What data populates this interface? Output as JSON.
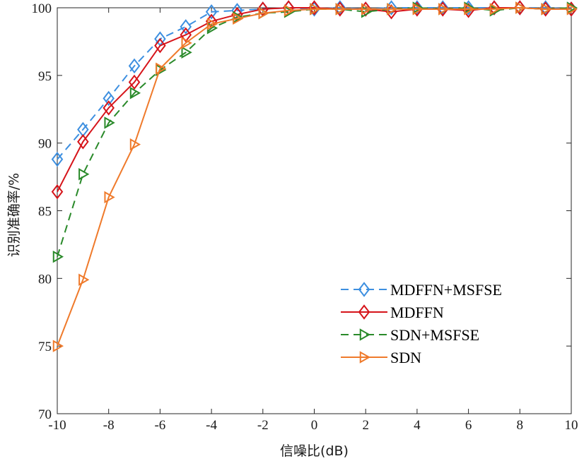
{
  "chart_data": {
    "type": "line",
    "xlabel": "信噪比(dB)",
    "ylabel": "识别准确率/%",
    "xlim": [
      -10,
      10
    ],
    "ylim": [
      70,
      100
    ],
    "xticks": [
      "-10",
      "-8",
      "-6",
      "-4",
      "-2",
      "0",
      "2",
      "4",
      "6",
      "8",
      "10"
    ],
    "yticks": [
      "70",
      "75",
      "80",
      "85",
      "90",
      "95",
      "100"
    ],
    "grid": false,
    "legend_position": "lower-right",
    "x": [
      -10,
      -9,
      -8,
      -7,
      -6,
      -5,
      -4,
      -3,
      -2,
      -1,
      0,
      1,
      2,
      3,
      4,
      5,
      6,
      7,
      8,
      9,
      10
    ],
    "series": [
      {
        "name": "MDFFN+MSFSE",
        "color": "#3d8fe0",
        "line_style": "dashed",
        "marker": "diamond",
        "values": [
          88.8,
          91.0,
          93.3,
          95.7,
          97.7,
          98.6,
          99.7,
          99.8,
          99.9,
          100.0,
          99.9,
          100.0,
          99.9,
          100.0,
          100.0,
          100.0,
          100.0,
          100.0,
          100.0,
          100.0,
          99.9
        ]
      },
      {
        "name": "MDFFN",
        "color": "#d6141a",
        "line_style": "solid",
        "marker": "diamond",
        "values": [
          86.4,
          90.1,
          92.6,
          94.5,
          97.2,
          98.0,
          99.0,
          99.5,
          99.9,
          100.0,
          100.0,
          99.9,
          99.9,
          99.7,
          99.9,
          99.9,
          99.8,
          100.0,
          100.0,
          99.9,
          99.9
        ]
      },
      {
        "name": "SDN+MSFSE",
        "color": "#2a8a2a",
        "line_style": "dashed",
        "marker": "triangle-right",
        "values": [
          81.6,
          87.7,
          91.5,
          93.7,
          95.4,
          96.7,
          98.5,
          99.3,
          99.6,
          99.7,
          99.9,
          99.9,
          99.7,
          99.9,
          100.0,
          99.9,
          100.0,
          99.8,
          100.0,
          99.9,
          100.0
        ]
      },
      {
        "name": "SDN",
        "color": "#ef7a2b",
        "line_style": "solid",
        "marker": "triangle-right",
        "values": [
          75.0,
          79.9,
          86.0,
          89.9,
          95.5,
          97.4,
          98.8,
          99.2,
          99.6,
          99.8,
          99.9,
          99.9,
          99.9,
          99.9,
          99.9,
          99.9,
          99.9,
          99.9,
          100.0,
          99.9,
          99.9
        ]
      }
    ]
  }
}
